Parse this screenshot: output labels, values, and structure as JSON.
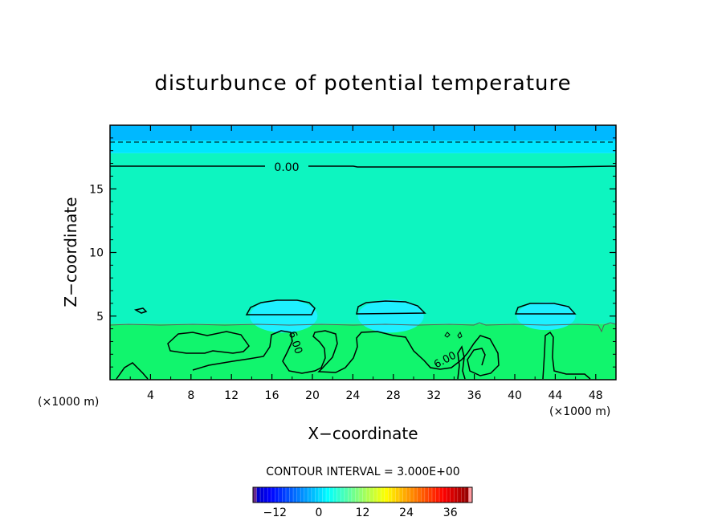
{
  "chart_data": {
    "type": "heatmap",
    "title": "disturbunce of potential temperature",
    "xlabel": "X−coordinate",
    "ylabel": "Z−coordinate",
    "x_unit": "(×1000 m)",
    "x_unit_right": "(×1000 m)",
    "xlim": [
      0,
      50
    ],
    "ylim": [
      0,
      20
    ],
    "x_ticks": [
      4,
      8,
      12,
      16,
      20,
      24,
      28,
      32,
      36,
      40,
      44,
      48
    ],
    "x_tick_labels": [
      "4",
      "8",
      "12",
      "16",
      "20",
      "24",
      "28",
      "32",
      "36",
      "40",
      "44",
      "48"
    ],
    "y_ticks": [
      5,
      10,
      15
    ],
    "y_tick_labels": [
      "5",
      "10",
      "15"
    ],
    "contour_interval_text": "CONTOUR INTERVAL = 3.000E+00",
    "contour_labels": [
      "0.00",
      "6.00",
      "6.00"
    ],
    "colorbar": {
      "range": [
        -18,
        42
      ],
      "ticks": [
        -12,
        0,
        12,
        24,
        36
      ],
      "tick_labels": [
        "−12",
        "0",
        "12",
        "24",
        "36"
      ]
    },
    "layers": [
      {
        "z_range": [
          0,
          4.4
        ],
        "value_range": [
          6,
          9
        ],
        "color": "#11f56d"
      },
      {
        "z_range": [
          4.4,
          17.8
        ],
        "value_range": [
          3,
          6
        ],
        "color": "#0df5c0"
      },
      {
        "z_range": [
          17.8,
          18.8
        ],
        "value_range": [
          0,
          3
        ],
        "color": "#00e6ff"
      },
      {
        "z_range": [
          18.8,
          20
        ],
        "value_range": [
          -3,
          0
        ],
        "color": "#00b8ff"
      }
    ],
    "cells": [
      {
        "x_range": [
          13.8,
          20.5
        ],
        "z_range": [
          5.0,
          6.3
        ],
        "value_range": [
          0,
          3
        ],
        "color": "#1ef0ff"
      },
      {
        "x_range": [
          24.5,
          31.0
        ],
        "z_range": [
          5.0,
          6.3
        ],
        "value_range": [
          0,
          3
        ],
        "color": "#1ef0ff"
      },
      {
        "x_range": [
          40.2,
          46.0
        ],
        "z_range": [
          5.0,
          6.1
        ],
        "value_range": [
          0,
          3
        ],
        "color": "#1ef0ff"
      }
    ]
  }
}
